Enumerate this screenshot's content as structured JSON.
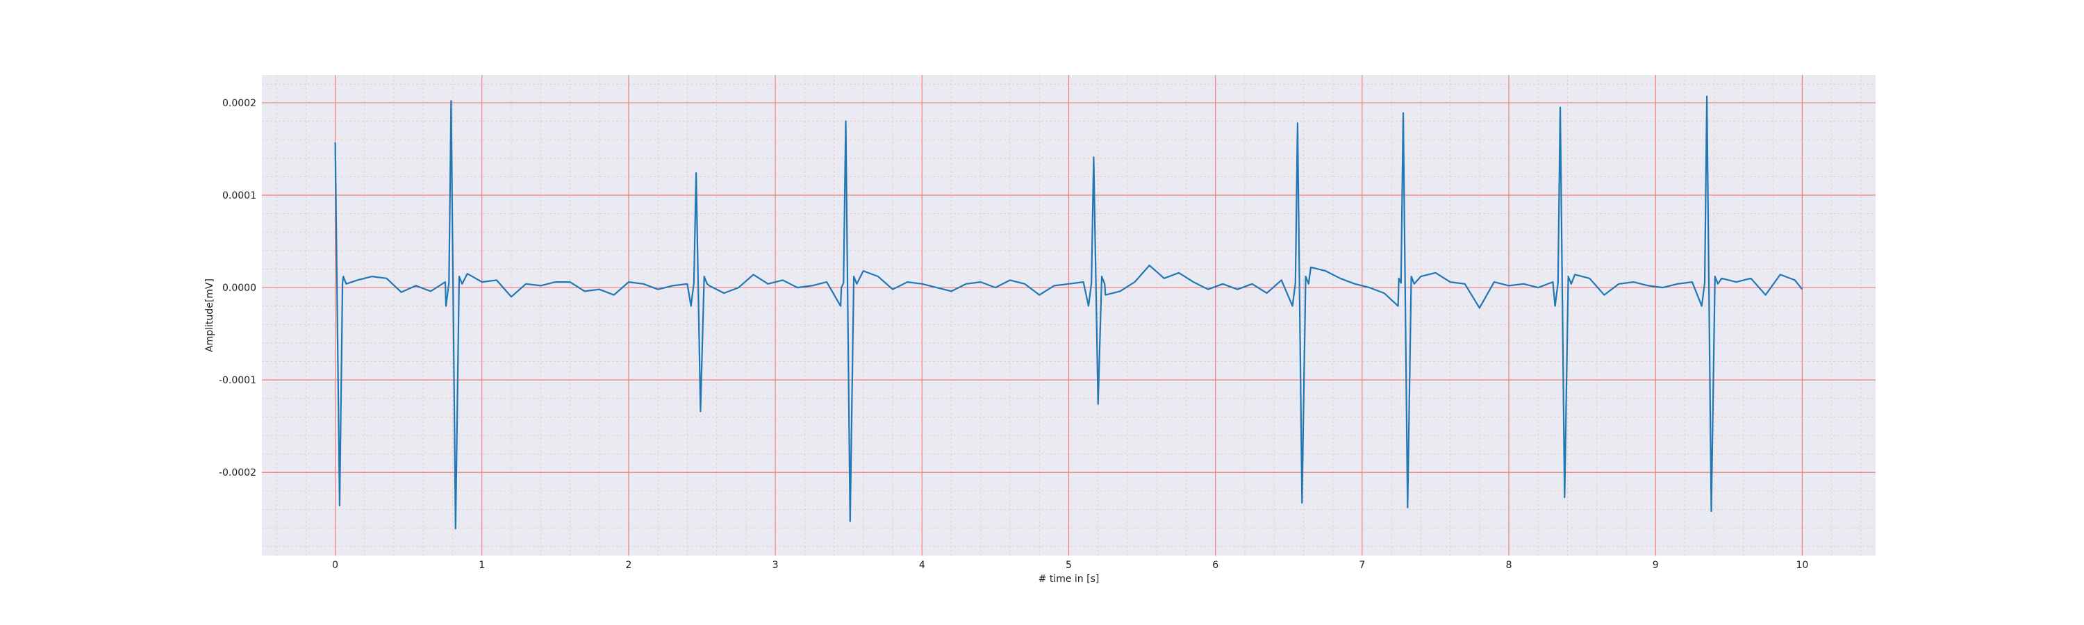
{
  "chart_data": {
    "type": "line",
    "title": "",
    "xlabel": "# time in [s]",
    "ylabel": "Amplitude[mV]",
    "xlim": [
      -0.5,
      10.5
    ],
    "ylim": [
      -0.00029,
      0.00023
    ],
    "x_ticks": [
      0,
      1,
      2,
      3,
      4,
      5,
      6,
      7,
      8,
      9,
      10
    ],
    "x_tick_labels": [
      "0",
      "1",
      "2",
      "3",
      "4",
      "5",
      "6",
      "7",
      "8",
      "9",
      "10"
    ],
    "y_ticks": [
      0.0002,
      0.0001,
      0.0,
      -0.0001,
      -0.0002
    ],
    "y_tick_labels": [
      "0.0002",
      "0.0001",
      "0.0000",
      "-0.0001",
      "-0.0002"
    ],
    "grid": true,
    "grid_minor": true,
    "colors": {
      "background": "#eaeaf2",
      "major_grid": "#f08080",
      "minor_grid": "#f7c0c0",
      "line": "#1f77b4"
    },
    "series": [
      {
        "beats": [
          {
            "t": 0.0,
            "peak": 0.000157,
            "trough": -0.000236
          },
          {
            "t": 0.79,
            "peak": 0.000202,
            "trough": -0.000261
          },
          {
            "t": 2.46,
            "peak": 0.000124,
            "trough": -0.000134
          },
          {
            "t": 3.48,
            "peak": 0.00018,
            "trough": -0.000253
          },
          {
            "t": 5.17,
            "peak": 0.000141,
            "trough": -0.000126
          },
          {
            "t": 6.56,
            "peak": 0.000178,
            "trough": -0.000233
          },
          {
            "t": 7.28,
            "peak": 0.000189,
            "trough": -0.000238
          },
          {
            "t": 8.35,
            "peak": 0.000195,
            "trough": -0.000227
          },
          {
            "t": 9.35,
            "peak": 0.000207,
            "trough": -0.000242
          }
        ],
        "baseline_x": [
          0.05,
          0.15,
          0.25,
          0.35,
          0.45,
          0.55,
          0.65,
          0.75,
          0.9,
          1.0,
          1.1,
          1.2,
          1.3,
          1.4,
          1.5,
          1.6,
          1.7,
          1.8,
          1.9,
          2.0,
          2.1,
          2.2,
          2.3,
          2.4,
          2.55,
          2.65,
          2.75,
          2.85,
          2.95,
          3.05,
          3.15,
          3.25,
          3.35,
          3.45,
          3.6,
          3.7,
          3.8,
          3.9,
          4.0,
          4.1,
          4.2,
          4.3,
          4.4,
          4.5,
          4.6,
          4.7,
          4.8,
          4.9,
          5.0,
          5.1,
          5.25,
          5.35,
          5.45,
          5.55,
          5.65,
          5.75,
          5.85,
          5.95,
          6.05,
          6.15,
          6.25,
          6.35,
          6.45,
          6.65,
          6.75,
          6.85,
          6.95,
          7.05,
          7.15,
          7.25,
          7.4,
          7.5,
          7.6,
          7.7,
          7.8,
          7.9,
          8.0,
          8.1,
          8.2,
          8.3,
          8.45,
          8.55,
          8.65,
          8.75,
          8.85,
          8.95,
          9.05,
          9.15,
          9.25,
          9.45,
          9.55,
          9.65,
          9.75,
          9.85,
          9.95,
          10.0
        ],
        "baseline_y": [
          5e-06,
          8e-06,
          1.2e-05,
          1e-05,
          -5e-06,
          2e-06,
          -4e-06,
          6e-06,
          1.5e-05,
          6e-06,
          8e-06,
          -1e-05,
          4e-06,
          2e-06,
          6e-06,
          6e-06,
          -4e-06,
          -2e-06,
          -8e-06,
          6e-06,
          4e-06,
          -2e-06,
          2e-06,
          4e-06,
          2e-06,
          -6e-06,
          0.0,
          1.4e-05,
          4e-06,
          8e-06,
          0.0,
          2e-06,
          6e-06,
          0.0,
          1.8e-05,
          1.2e-05,
          -2e-06,
          6e-06,
          4e-06,
          0.0,
          -4e-06,
          4e-06,
          6e-06,
          0.0,
          8e-06,
          4e-06,
          -8e-06,
          2e-06,
          4e-06,
          6e-06,
          -8e-06,
          -4e-06,
          6e-06,
          2.4e-05,
          1e-05,
          1.6e-05,
          6e-06,
          -2e-06,
          4e-06,
          -2e-06,
          4e-06,
          -6e-06,
          8e-06,
          2.2e-05,
          1.8e-05,
          1e-05,
          4e-06,
          0.0,
          -6e-06,
          1e-05,
          1.2e-05,
          1.6e-05,
          6e-06,
          4e-06,
          -2.2e-05,
          6e-06,
          2e-06,
          4e-06,
          0.0,
          6e-06,
          1.4e-05,
          1e-05,
          -8e-06,
          4e-06,
          6e-06,
          2e-06,
          0.0,
          4e-06,
          6e-06,
          1e-05,
          6e-06,
          1e-05,
          -8e-06,
          1.4e-05,
          8e-06,
          -2e-06
        ]
      }
    ]
  }
}
